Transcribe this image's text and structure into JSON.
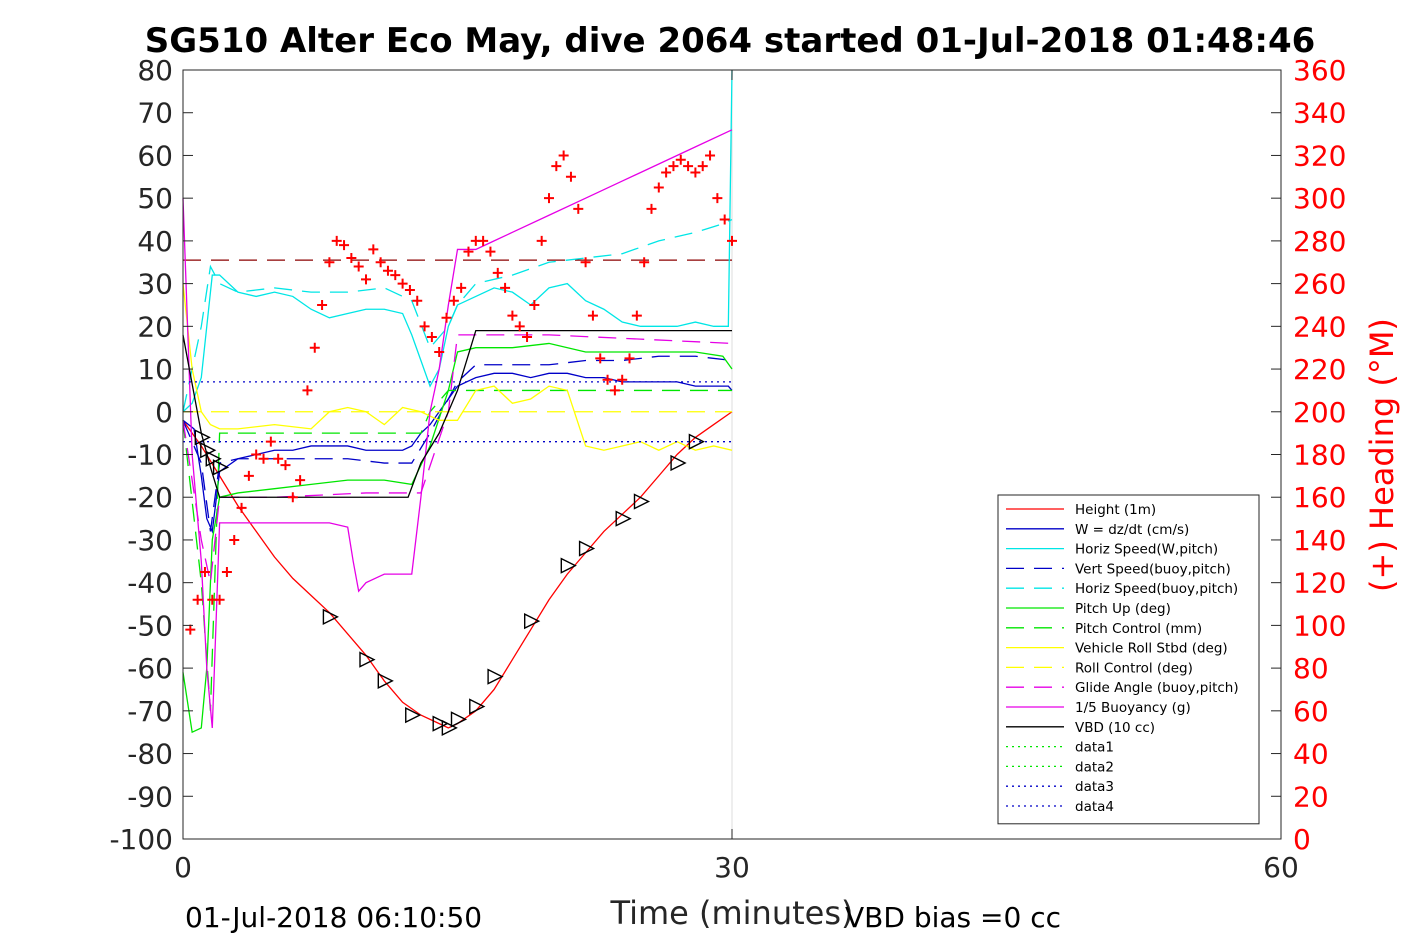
{
  "chart_data": {
    "type": "line",
    "title": "SG510 Alter Eco May, dive 2064 started 01-Jul-2018 01:48:46",
    "xlabel": "Time (minutes)",
    "ylabel": "",
    "y2label": "(+) Heading (°M)",
    "xlim": [
      0,
      60
    ],
    "ylim": [
      -100,
      80
    ],
    "y2lim": [
      0,
      360
    ],
    "x_ticks": [
      "0",
      "30",
      "60"
    ],
    "y_ticks": [
      "80",
      "70",
      "60",
      "50",
      "40",
      "30",
      "20",
      "10",
      "0",
      "-10",
      "-20",
      "-30",
      "-40",
      "-50",
      "-60",
      "-70",
      "-80",
      "-90",
      "-100"
    ],
    "y2_ticks": [
      "360",
      "340",
      "320",
      "300",
      "280",
      "260",
      "240",
      "220",
      "200",
      "180",
      "160",
      "140",
      "120",
      "100",
      "80",
      "60",
      "40",
      "20",
      "0"
    ],
    "footer_left": "01-Jul-2018 06:10:50",
    "footer_right": "VBD bias =0 cc",
    "legend_position": "lower-right",
    "series": [
      {
        "name": "Height (1m)",
        "color": "#ff0000",
        "style": "solid",
        "x": [
          0,
          1,
          2,
          3,
          4,
          5,
          6,
          7,
          8,
          9,
          10,
          11,
          12,
          13,
          14,
          14.5,
          15,
          16,
          17,
          18,
          19,
          20,
          21,
          22,
          23,
          24,
          25,
          26,
          27,
          28,
          29,
          30
        ],
        "y": [
          -2,
          -8,
          -15,
          -22,
          -28,
          -34,
          -39,
          -43,
          -47,
          -52,
          -57,
          -63,
          -68,
          -71,
          -73,
          -74,
          -73,
          -70,
          -65,
          -58,
          -51,
          -44,
          -38,
          -33,
          -28,
          -24,
          -20,
          -15,
          -10,
          -6,
          -3,
          0
        ]
      },
      {
        "name": "W = dz/dt (cm/s)",
        "color": "#0000c8",
        "style": "solid",
        "x": [
          0,
          0.6,
          1,
          1.3,
          1.6,
          2,
          3,
          4,
          5,
          6,
          7,
          8,
          9,
          10,
          11,
          12,
          12.5,
          13,
          13.5,
          14,
          14.5,
          15,
          16,
          17,
          18,
          19,
          20,
          21,
          22,
          23,
          24,
          25,
          26,
          27,
          28,
          29,
          29.8,
          30
        ],
        "y": [
          -2,
          -4,
          -15,
          -25,
          -28,
          -14,
          -11,
          -10,
          -9,
          -9,
          -8,
          -8,
          -8,
          -9,
          -9,
          -9,
          -8,
          -5,
          -3,
          0,
          3,
          6,
          8,
          9,
          9,
          8,
          9,
          9,
          8,
          8,
          7,
          7,
          7,
          7,
          6,
          6,
          6,
          5
        ]
      },
      {
        "name": "Horiz Speed(W,pitch)",
        "color": "#00e6e6",
        "style": "solid",
        "x": [
          0,
          0.5,
          1,
          1.3,
          1.6,
          2,
          3,
          4,
          5,
          6,
          7,
          8,
          9,
          10,
          11,
          12,
          12.5,
          13,
          13.5,
          14,
          14.5,
          15,
          16,
          17,
          18,
          19,
          20,
          21,
          22,
          23,
          24,
          25,
          26,
          27,
          28,
          29,
          29.8,
          30
        ],
        "y": [
          0,
          2,
          8,
          20,
          32,
          32,
          28,
          27,
          28,
          27,
          24,
          22,
          23,
          24,
          24,
          23,
          18,
          12,
          6,
          10,
          20,
          25,
          27,
          29,
          28,
          25,
          29,
          30,
          26,
          24,
          21,
          20,
          20,
          20,
          21,
          20,
          20,
          80
        ]
      },
      {
        "name": "Vert Speed(buoy,pitch)",
        "color": "#0000c8",
        "style": "dashed",
        "x": [
          0,
          1,
          1.5,
          2,
          3,
          5,
          7,
          9,
          11,
          12.5,
          13.5,
          14.5,
          15,
          16,
          18,
          20,
          22,
          24,
          26,
          28,
          30
        ],
        "y": [
          -2,
          -12,
          -28,
          -12,
          -11,
          -11,
          -11,
          -11,
          -12,
          -12,
          -5,
          3,
          7,
          11,
          11,
          11,
          12,
          12,
          13,
          13,
          12
        ]
      },
      {
        "name": "Horiz Speed(buoy,pitch)",
        "color": "#00e6e6",
        "style": "dashed",
        "x": [
          0,
          1,
          1.5,
          2,
          3,
          5,
          7,
          9,
          11,
          12.5,
          13.5,
          14.5,
          15,
          16,
          18,
          20,
          22,
          24,
          26,
          28,
          29.5,
          30
        ],
        "y": [
          0,
          20,
          34,
          30,
          28,
          29,
          28,
          28,
          29,
          26,
          15,
          20,
          25,
          30,
          32,
          35,
          36,
          37,
          40,
          42,
          44,
          45
        ]
      },
      {
        "name": "Pitch Up (deg)",
        "color": "#00e600",
        "style": "solid",
        "x": [
          0,
          0.5,
          1,
          1.3,
          1.6,
          2,
          3,
          5,
          7,
          9,
          11,
          12.5,
          13.5,
          14.5,
          15,
          16,
          18,
          20,
          22,
          24,
          26,
          28,
          29.5,
          30
        ],
        "y": [
          -61,
          -75,
          -74,
          -60,
          -30,
          -20,
          -19,
          -18,
          -17,
          -16,
          -16,
          -17,
          -8,
          5,
          14,
          15,
          15,
          16,
          14,
          14,
          14,
          14,
          13,
          10
        ]
      },
      {
        "name": "Pitch Control (mm)",
        "color": "#00e600",
        "style": "dashed",
        "x": [
          0,
          1,
          1.5,
          2,
          5,
          10,
          13,
          13.5,
          14.5,
          15,
          20,
          25,
          30
        ],
        "y": [
          -2,
          -40,
          -70,
          -5,
          -5,
          -5,
          -5,
          0,
          5,
          5,
          5,
          5,
          5
        ]
      },
      {
        "name": "Vehicle Roll Stbd (deg)",
        "color": "#ffff00",
        "style": "solid",
        "x": [
          0,
          0.5,
          1,
          1.5,
          2,
          3,
          5,
          7,
          8,
          9,
          10,
          11,
          12,
          13,
          14,
          15,
          16,
          17,
          18,
          19,
          20,
          21,
          22,
          23,
          24,
          25,
          26,
          27,
          28,
          29,
          30
        ],
        "y": [
          30,
          10,
          0,
          -3,
          -4,
          -4,
          -3,
          -4,
          0,
          1,
          0,
          -3,
          1,
          0,
          -2,
          -2,
          5,
          6,
          2,
          3,
          6,
          5,
          -8,
          -9,
          -8,
          -7,
          -9,
          -7,
          -9,
          -8,
          -9
        ]
      },
      {
        "name": "Roll Control (deg)",
        "color": "#ffff00",
        "style": "dashed",
        "x": [
          0,
          30
        ],
        "y": [
          0,
          0
        ]
      },
      {
        "name": "Glide Angle (buoy,pitch)",
        "color": "#e600e6",
        "style": "dashed",
        "x": [
          0,
          1,
          1.5,
          2,
          5,
          10,
          13,
          14.5,
          15,
          20,
          25,
          30
        ],
        "y": [
          -2,
          -30,
          -40,
          -20,
          -20,
          -19,
          -19,
          0,
          18,
          18,
          17,
          16
        ]
      },
      {
        "name": "1/5 Buoyancy (g)",
        "color": "#e600e6",
        "style": "solid",
        "x": [
          0,
          0.5,
          1,
          1.3,
          1.6,
          2,
          3,
          5,
          8,
          9,
          9.3,
          9.6,
          10,
          11,
          12,
          12.5,
          13,
          13.5,
          14,
          14.5,
          15,
          16,
          17,
          18,
          20,
          22,
          24,
          26,
          28,
          30
        ],
        "y": [
          50,
          -10,
          -35,
          -60,
          -74,
          -26,
          -26,
          -26,
          -26,
          -27,
          -35,
          -42,
          -40,
          -38,
          -38,
          -38,
          -20,
          0,
          10,
          25,
          38,
          38,
          40,
          42,
          46,
          50,
          54,
          58,
          62,
          66
        ]
      },
      {
        "name": "VBD (10 cc)",
        "color": "#000000",
        "style": "solid",
        "x": [
          0,
          1,
          1.5,
          2,
          12.3,
          13,
          14,
          14.5,
          15,
          15.5,
          16,
          30
        ],
        "y": [
          18,
          -5,
          -13,
          -20,
          -20,
          -12,
          -5,
          0,
          5,
          12,
          19,
          19
        ]
      },
      {
        "name": "data1",
        "color": "#00e600",
        "style": "dotted",
        "x": [],
        "y": []
      },
      {
        "name": "data2",
        "color": "#00e600",
        "style": "dotted",
        "x": [],
        "y": []
      },
      {
        "name": "data3",
        "color": "#0000c8",
        "style": "dotted",
        "x": [
          0,
          30
        ],
        "y": [
          7,
          7
        ]
      },
      {
        "name": "data4",
        "color": "#0000c8",
        "style": "dotted",
        "x": [
          0,
          30
        ],
        "y": [
          -7,
          -7
        ]
      }
    ],
    "reference_lines": [
      {
        "color": "#8b0000",
        "style": "dashed",
        "x": [
          0,
          30
        ],
        "y": [
          35.5,
          35.5
        ]
      }
    ],
    "heading_points": {
      "color": "#ff0000",
      "marker": "+",
      "axis": "right",
      "x": [
        0.4,
        0.8,
        1.2,
        1.6,
        2.0,
        2.4,
        2.8,
        3.2,
        3.6,
        4.0,
        4.4,
        4.8,
        5.2,
        5.6,
        6.0,
        6.4,
        6.8,
        7.2,
        7.6,
        8.0,
        8.4,
        8.8,
        9.2,
        9.6,
        10.0,
        10.4,
        10.8,
        11.2,
        11.6,
        12.0,
        12.4,
        12.8,
        13.2,
        13.6,
        14.0,
        14.4,
        14.8,
        15.2,
        15.6,
        16.0,
        16.4,
        16.8,
        17.2,
        17.6,
        18.0,
        18.4,
        18.8,
        19.2,
        19.6,
        20.0,
        20.4,
        20.8,
        21.2,
        21.6,
        22.0,
        22.4,
        22.8,
        23.2,
        23.6,
        24.0,
        24.4,
        24.8,
        25.2,
        25.6,
        26.0,
        26.4,
        26.8,
        27.2,
        27.6,
        28.0,
        28.4,
        28.8,
        29.2,
        29.6,
        30.0
      ],
      "y": [
        98,
        112,
        125,
        112,
        112,
        125,
        140,
        155,
        170,
        180,
        178,
        186,
        178,
        175,
        160,
        168,
        210,
        230,
        250,
        270,
        280,
        278,
        272,
        268,
        262,
        276,
        270,
        266,
        264,
        260,
        257,
        252,
        240,
        235,
        228,
        244,
        252,
        258,
        275,
        280,
        280,
        275,
        265,
        258,
        245,
        240,
        235,
        250,
        280,
        300,
        315,
        320,
        310,
        295,
        270,
        245,
        225,
        215,
        210,
        215,
        225,
        245,
        270,
        295,
        305,
        312,
        315,
        318,
        315,
        312,
        315,
        320,
        300,
        290,
        280
      ]
    },
    "direction_markers": {
      "color": "#000000",
      "marker": "triangle-right",
      "x": [
        1.0,
        1.3,
        1.6,
        2.0,
        8.0,
        10.0,
        11.0,
        12.5,
        14.0,
        14.5,
        15.0,
        16.0,
        17.0,
        19.0,
        21.0,
        22.0,
        24.0,
        25.0,
        27.0,
        28.0
      ],
      "y": [
        -6,
        -9,
        -11,
        -13,
        -48,
        -58,
        -63,
        -71,
        -73,
        -74,
        -72,
        -69,
        -62,
        -49,
        -36,
        -32,
        -25,
        -21,
        -12,
        -7
      ]
    }
  }
}
